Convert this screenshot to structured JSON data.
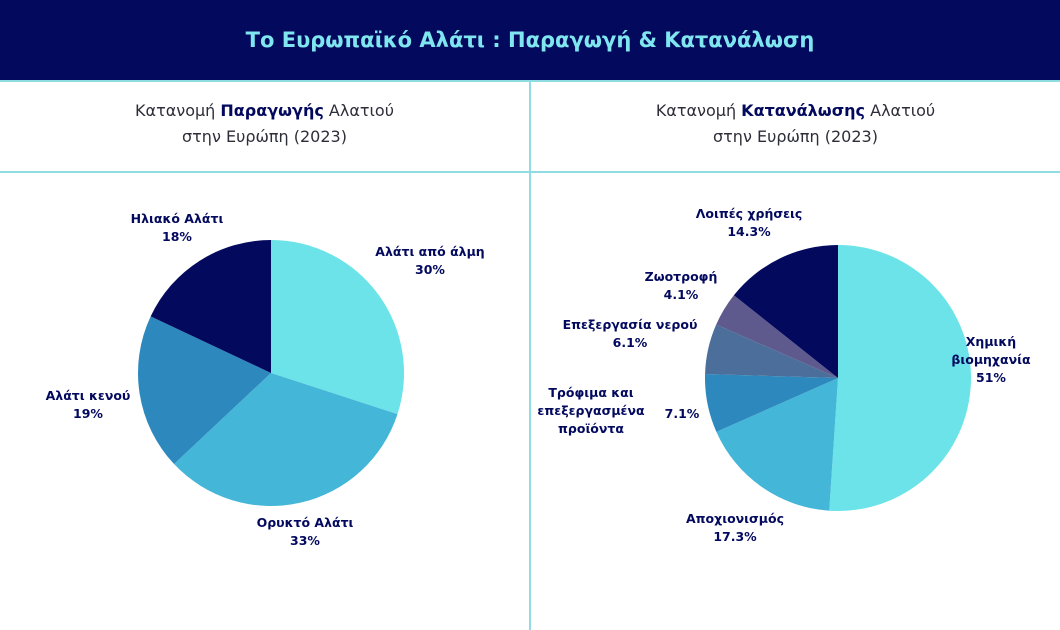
{
  "header": {
    "title": "Το Ευρωπαϊκό Αλάτι : Παραγωγή & Κατανάλωση"
  },
  "left_panel": {
    "title_pre": "Κατανομή ",
    "title_bold": "Παραγωγής",
    "title_post": " Αλατιού",
    "title_line2": "στην Ευρώπη (2023)"
  },
  "right_panel": {
    "title_pre": "Κατανομή ",
    "title_bold": "Κατανάλωσης",
    "title_post": " Αλατιού",
    "title_line2": "στην Ευρώπη (2023)"
  },
  "chart_data": [
    {
      "type": "pie",
      "start_angle": "12 o'clock",
      "direction": "clockwise",
      "slices": [
        {
          "name": "Αλάτι από άλμη",
          "value": 30,
          "label": "30%",
          "color": "#6be3e8"
        },
        {
          "name": "Ορυκτό Αλάτι",
          "value": 33,
          "label": "33%",
          "color": "#44b6d8"
        },
        {
          "name": "Αλάτι κενού",
          "value": 19,
          "label": "19%",
          "color": "#2d89bd"
        },
        {
          "name": "Ηλιακό Αλάτι",
          "value": 18,
          "label": "18%",
          "color": "#030a5e"
        }
      ]
    },
    {
      "type": "pie",
      "start_angle": "12 o'clock",
      "direction": "clockwise",
      "slices": [
        {
          "name": "Χημική βιομηχανία",
          "value": 51,
          "label": "51%",
          "color": "#6be3e8"
        },
        {
          "name": "Αποχιονισμός",
          "value": 17.3,
          "label": "17.3%",
          "color": "#44b6d8"
        },
        {
          "name": "Τρόφιμα και επεξεργασμένα προϊόντα",
          "value": 7.1,
          "label": "7.1%",
          "color": "#2d89bd"
        },
        {
          "name": "Επεξεργασία νερού",
          "value": 6.1,
          "label": "6.1%",
          "color": "#4b6e9a"
        },
        {
          "name": "Ζωοτροφή",
          "value": 4.1,
          "label": "4.1%",
          "color": "#5e5a8e"
        },
        {
          "name": "Λοιπές χρήσεις",
          "value": 14.3,
          "label": "14.3%",
          "color": "#030a5e"
        }
      ]
    }
  ]
}
